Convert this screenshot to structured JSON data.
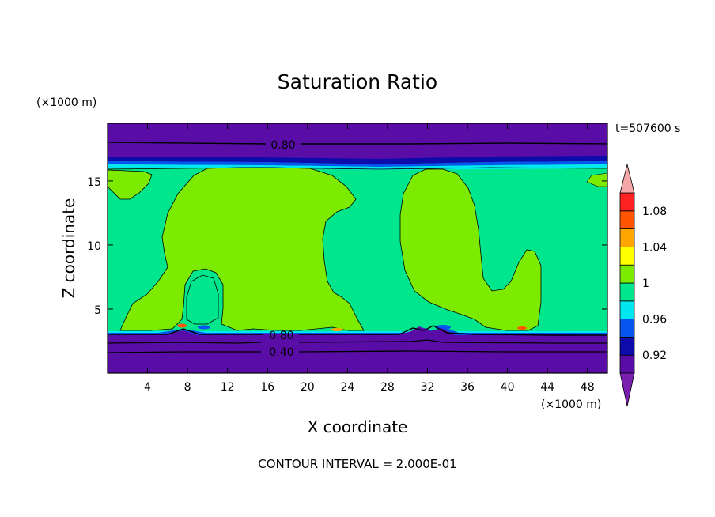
{
  "chart_data": {
    "type": "heatmap",
    "title": "Saturation Ratio",
    "xlabel": "X coordinate",
    "ylabel": "Z coordinate",
    "x_unit": "(×1000 m)",
    "y_unit": "(×1000 m)",
    "time_label": "t=507600 s",
    "footer": "CONTOUR INTERVAL = 2.000E-01",
    "xlim": [
      0,
      50
    ],
    "ylim": [
      0,
      19.5
    ],
    "x_ticks": [
      4,
      8,
      12,
      16,
      20,
      24,
      28,
      32,
      36,
      40,
      44,
      48
    ],
    "y_ticks": [
      5,
      10,
      15
    ],
    "contour_labels": [
      {
        "text": "0.80",
        "x": 17.5,
        "z": 17.9
      },
      {
        "text": "0.80",
        "x": 17.5,
        "z": 2.9
      },
      {
        "text": "0.40",
        "x": 17.5,
        "z": 1.7
      }
    ],
    "colorbar": {
      "labels": [
        "0.92",
        "0.96",
        "1",
        "1.04",
        "1.08"
      ],
      "colors": [
        "#5a0da6",
        "#0c0caa",
        "#0555ee",
        "#00e6ee",
        "#00e68c",
        "#7deb00",
        "#ffff00",
        "#ffa500",
        "#ff5500",
        "#ff2222",
        "#f5a7a7"
      ],
      "triangle_low": "#7a1fb0",
      "triangle_high": "#f5a7a7"
    }
  }
}
